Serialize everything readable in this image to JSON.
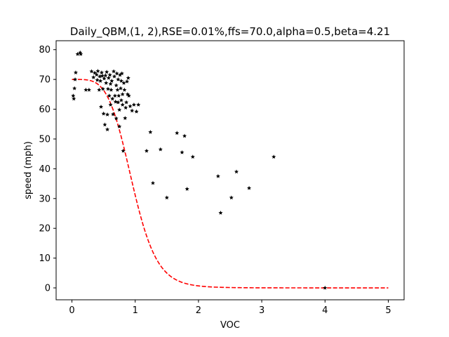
{
  "chart_data": {
    "type": "scatter",
    "title": "Daily_QBM,(1, 2),RSE=0.01%,ffs=70.0,alpha=0.5,beta=4.21",
    "xlabel": "VOC",
    "ylabel": "speed (mph)",
    "xlim": [
      -0.25,
      5.25
    ],
    "ylim": [
      -4,
      83
    ],
    "xticks": [
      0,
      1,
      2,
      3,
      4,
      5
    ],
    "yticks": [
      0,
      10,
      20,
      30,
      40,
      50,
      60,
      70,
      80
    ],
    "grid": false,
    "legend": "none",
    "colors": {
      "points": "#000000",
      "fit": "#ff0000",
      "axes": "#000000",
      "background": "#ffffff"
    },
    "series": [
      {
        "kind": "scatter",
        "marker": "star",
        "points": [
          [
            0.02,
            64.5
          ],
          [
            0.03,
            63.5
          ],
          [
            0.04,
            67.0
          ],
          [
            0.05,
            70.0
          ],
          [
            0.06,
            72.3
          ],
          [
            0.09,
            78.5
          ],
          [
            0.13,
            79.0
          ],
          [
            0.14,
            78.5
          ],
          [
            0.22,
            66.5
          ],
          [
            0.27,
            66.5
          ],
          [
            0.31,
            72.7
          ],
          [
            0.34,
            70.7
          ],
          [
            0.36,
            72.2
          ],
          [
            0.39,
            71.6
          ],
          [
            0.4,
            69.8
          ],
          [
            0.41,
            72.8
          ],
          [
            0.43,
            66.5
          ],
          [
            0.44,
            71.0
          ],
          [
            0.45,
            69.5
          ],
          [
            0.46,
            60.8
          ],
          [
            0.47,
            72.3
          ],
          [
            0.48,
            71.2
          ],
          [
            0.49,
            66.8
          ],
          [
            0.5,
            58.5
          ],
          [
            0.51,
            70.3
          ],
          [
            0.52,
            54.8
          ],
          [
            0.53,
            71.3
          ],
          [
            0.54,
            68.8
          ],
          [
            0.55,
            72.5
          ],
          [
            0.56,
            53.2
          ],
          [
            0.56,
            58.2
          ],
          [
            0.57,
            66.8
          ],
          [
            0.58,
            70.5
          ],
          [
            0.59,
            64.5
          ],
          [
            0.6,
            71.5
          ],
          [
            0.61,
            61.5
          ],
          [
            0.61,
            68.5
          ],
          [
            0.62,
            66.5
          ],
          [
            0.63,
            69.5
          ],
          [
            0.64,
            63.5
          ],
          [
            0.65,
            58.3
          ],
          [
            0.66,
            72.7
          ],
          [
            0.67,
            71.0
          ],
          [
            0.68,
            64.5
          ],
          [
            0.69,
            62.5
          ],
          [
            0.7,
            68.0
          ],
          [
            0.7,
            56.9
          ],
          [
            0.71,
            72.0
          ],
          [
            0.72,
            66.5
          ],
          [
            0.73,
            70.0
          ],
          [
            0.73,
            62.3
          ],
          [
            0.74,
            64.5
          ],
          [
            0.75,
            59.8
          ],
          [
            0.75,
            54.2
          ],
          [
            0.76,
            71.5
          ],
          [
            0.77,
            67.0
          ],
          [
            0.78,
            69.5
          ],
          [
            0.78,
            63.0
          ],
          [
            0.79,
            72.0
          ],
          [
            0.8,
            65.0
          ],
          [
            0.8,
            61.5
          ],
          [
            0.81,
            46.0
          ],
          [
            0.82,
            68.8
          ],
          [
            0.83,
            66.5
          ],
          [
            0.84,
            57.0
          ],
          [
            0.85,
            60.5
          ],
          [
            0.86,
            62.3
          ],
          [
            0.87,
            69.3
          ],
          [
            0.88,
            65.0
          ],
          [
            0.89,
            70.5
          ],
          [
            0.9,
            64.5
          ],
          [
            0.92,
            61.0
          ],
          [
            0.95,
            59.5
          ],
          [
            0.98,
            61.5
          ],
          [
            1.02,
            59.2
          ],
          [
            1.05,
            61.5
          ],
          [
            1.18,
            46.0
          ],
          [
            1.24,
            52.3
          ],
          [
            1.28,
            35.2
          ],
          [
            1.4,
            46.5
          ],
          [
            1.5,
            30.3
          ],
          [
            1.66,
            52.0
          ],
          [
            1.74,
            45.5
          ],
          [
            1.78,
            51.0
          ],
          [
            1.82,
            33.2
          ],
          [
            1.91,
            44.0
          ],
          [
            2.31,
            37.5
          ],
          [
            2.35,
            25.2
          ],
          [
            2.52,
            30.3
          ],
          [
            2.6,
            39.0
          ],
          [
            2.8,
            33.5
          ],
          [
            3.19,
            44.0
          ],
          [
            4.0,
            0.0
          ]
        ]
      },
      {
        "kind": "fit-line",
        "style": "dashed",
        "model": "qbm",
        "params": {
          "ffs": 70.0,
          "alpha": 0.5,
          "beta": 4.21
        },
        "x_range": [
          0,
          5
        ]
      }
    ]
  }
}
